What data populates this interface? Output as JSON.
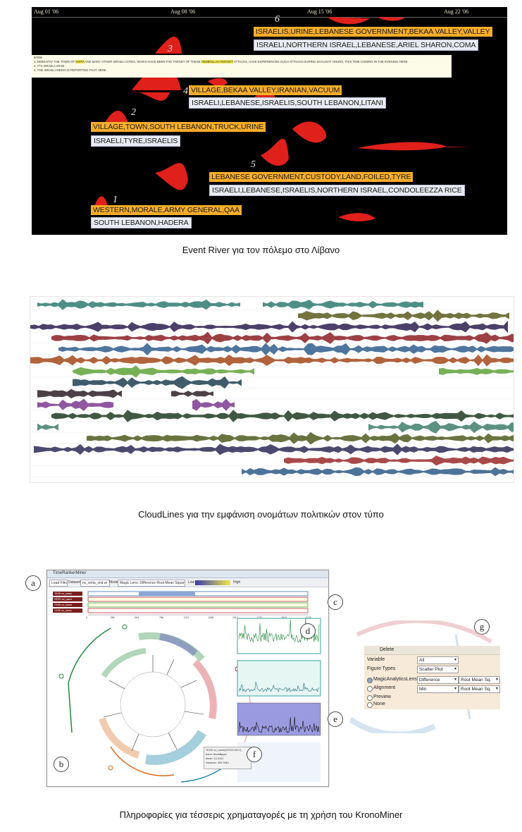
{
  "event_river": {
    "ticks": [
      "Aug 01 '06",
      "Aug 08 '06",
      "Aug 15 '06",
      "Aug 22 '06"
    ],
    "numbers": [
      "1",
      "2",
      "3",
      "4",
      "5",
      "6"
    ],
    "labels": [
      {
        "top": "ISRAELIS,URINE,LEBANESE GOVERNMENT,BEKAA VALLEY,VALLEY",
        "bottom": "ISRAELI,NORTHERN ISRAEL,LEBANESE,ARIEL SHARON,COMA"
      },
      {
        "top": "VILLAGE,BEKAA VALLEY,IRANIAN,VACUUM",
        "bottom": "ISRAELI,LEBANESE,ISRAELIS,SOUTH LEBANON,LITANI"
      },
      {
        "top": "VILLAGE,TOWN,SOUTH LEBANON,TRUCK,URINE",
        "bottom": "ISRAELI,TYRE,ISRAELIS"
      },
      {
        "top": "LEBANESE GOVERNMENT,CUSTODY,LAND,FOILED,TYRE",
        "bottom": "ISRAELI,LEBANESE,ISRAELIS,NORTHERN ISRAEL,CONDOLEEZZA RICE"
      },
      {
        "top": "WESTERN,MORALE,ARMY GENERAL,QAA",
        "bottom": "SOUTH LEBANON,HADERA"
      }
    ],
    "popup": {
      "date": "8/4/06",
      "line1a": "1. DEBKAFAY THE TOWN OF",
      "hl1": "HAIFA",
      "line1b": "AND MANY OTHER ISRAELI CITIES, WHICH HAVE BEEN THE TARGET OF THESE",
      "hl2": "HEZBOLLAH ROCKET",
      "line1c": "ATTACKS, HAVE EXPERIENCED SUCH ATTACKS DURING DAYLIGHT HOURS, THIS TIME COMING IN THE EVENING HERE.",
      "line2": "2. IT'S ISRAELI-ARAB",
      "line3": "3. THE ISRAELI MEDIA IS REPORTING THAT HERE."
    }
  },
  "captions": {
    "event_river": "Event River για τον πόλεμο στο Λίβανο",
    "cloudlines": "CloudLines για την εμφάνιση ονομάτων πολιτικών στον τύπο",
    "kronominer": "Πληροφορίες για τέσσερις χρηματαγορές με τη χρήση του  KronoMiner"
  },
  "cloudlines": {
    "colors": [
      "#2e7b6e",
      "#5a5a1e",
      "#2c1f4f",
      "#8b1f23",
      "#2f5d8c",
      "#a3481a",
      "#5fa33a",
      "#1f3f52",
      "#2b2026",
      "#7d3a8f",
      "#1d3b22",
      "#3f7e6c",
      "#4f5a1f",
      "#2b2a55",
      "#9a2a2a",
      "#2d5a86"
    ]
  },
  "kronominer": {
    "title": "TimeRankerMiner",
    "toolbar": [
      "Load Files",
      "Dataset",
      "nc_wnta_snd.ar",
      "Mode",
      "Magic Lens: Difference Root Mean Square",
      "Low",
      "High"
    ],
    "row_labels": [
      "TKHK no_name",
      "DEEN no_name",
      "TXHK no_name",
      "TXSE no_name"
    ],
    "axis": [
      "0",
      "256",
      "504",
      "756",
      "1012",
      "1268",
      "1517",
      "1770",
      "2023",
      "2276"
    ],
    "tooltip": [
      "TKHK no_name[1/2022-0917]",
      "trend: sinoidlipper",
      "Mean: 10.3141",
      "Variance: 499.7849"
    ],
    "callouts": [
      "a",
      "b",
      "c",
      "d",
      "e",
      "f",
      "g"
    ]
  },
  "menu": {
    "delete": "Delete",
    "variable_label": "Variable",
    "variable_value": "All",
    "figure_label": "Figure Types",
    "figure_value": "Scatter Plot",
    "opt1": "MagicAnalyticsLens",
    "opt1_a": "Difference",
    "opt1_b": "Root Mean Sq.",
    "opt2": "Alignment",
    "opt2_a": "Min",
    "opt2_b": "Root Mean Sq.",
    "opt3": "Preview",
    "opt4": "None"
  }
}
